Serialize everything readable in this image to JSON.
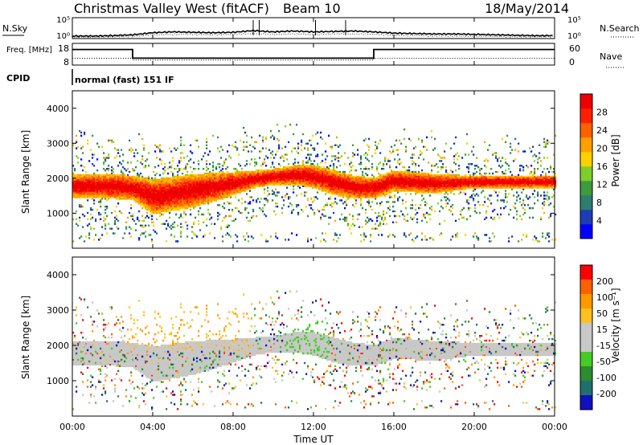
{
  "header": {
    "station": "Christmas Valley West (fitACF)",
    "beam": "Beam 10",
    "date": "18/May/2014"
  },
  "colors": {
    "power_scale": [
      "#0000ff",
      "#1e3cb4",
      "#2e7d6e",
      "#3d9a3d",
      "#7fcf2a",
      "#ffd000",
      "#ffa000",
      "#ff6000",
      "#ff2000",
      "#ee0000"
    ],
    "velocity_scale": [
      "#ff0000",
      "#ff6000",
      "#ff9900",
      "#ffc020",
      "#c8c8c8",
      "#c8c8c8",
      "#44cc22",
      "#2e8b2e",
      "#1f6f6f",
      "#1010c0"
    ],
    "ground_scatter": "#c8c8c8"
  },
  "chart_data": [
    {
      "type": "line",
      "panel": "noise",
      "ylabel_left": "N.Sky",
      "ylabel_right": "N.Search",
      "left_ticks": [
        "10^5",
        "10^0"
      ],
      "right_ticks": [
        "10^5",
        "10^0"
      ],
      "x_hours": [
        0,
        1,
        2,
        3,
        4,
        5,
        6,
        7,
        8,
        9,
        10,
        11,
        12,
        13,
        14,
        15,
        16,
        17,
        18,
        19,
        20,
        21,
        22,
        23,
        24
      ],
      "series": [
        {
          "style": "solid",
          "log10_values": [
            0.6,
            0.6,
            0.7,
            0.9,
            1.4,
            1.6,
            1.5,
            1.4,
            1.5,
            1.9,
            1.6,
            1.8,
            1.6,
            1.7,
            1.8,
            1.6,
            1.3,
            1.2,
            1.1,
            1.1,
            1.0,
            0.9,
            0.8,
            0.7,
            0.7
          ]
        },
        {
          "style": "dotted",
          "log10_values": [
            0.3,
            0.3,
            0.4,
            0.5,
            0.9,
            1.0,
            1.0,
            0.9,
            1.0,
            1.2,
            1.0,
            1.1,
            1.0,
            1.1,
            1.1,
            1.0,
            0.8,
            0.7,
            0.6,
            0.6,
            0.5,
            0.5,
            0.4,
            0.4,
            0.4
          ]
        }
      ]
    },
    {
      "type": "line",
      "panel": "frequency",
      "ylabel_left": "Freq. [MHz]",
      "ylabel_right": "Nave",
      "left_ticks": [
        "18",
        "8"
      ],
      "right_ticks": [
        "60",
        "0"
      ],
      "ylim_left": [
        8,
        18
      ],
      "ylim_right": [
        0,
        60
      ],
      "freq_mhz": [
        {
          "x_hours": 0,
          "value": 15.2
        },
        {
          "x_hours": 3,
          "value": 15.2
        },
        {
          "x_hours": 3,
          "value": 11.2
        },
        {
          "x_hours": 15,
          "value": 11.2
        },
        {
          "x_hours": 15,
          "value": 15.2
        },
        {
          "x_hours": 24,
          "value": 15.2
        }
      ],
      "nave": [
        {
          "x_hours": 0,
          "value": 19
        },
        {
          "x_hours": 3,
          "value": 19
        },
        {
          "x_hours": 3,
          "value": 14
        },
        {
          "x_hours": 15,
          "value": 14
        },
        {
          "x_hours": 15,
          "value": 19
        },
        {
          "x_hours": 24,
          "value": 19
        }
      ]
    },
    {
      "type": "heatmap",
      "panel": "power",
      "ylabel": "Slant Range [km]",
      "ylim": [
        0,
        4500
      ],
      "yticks": [
        1000,
        2000,
        3000,
        4000
      ],
      "colorbar_label": "Power [dB]",
      "colorbar_ticks": [
        4,
        8,
        12,
        16,
        20,
        24,
        28
      ],
      "colorbar_range": [
        0,
        32
      ],
      "echo_bands_hours": [
        0,
        2,
        3,
        4,
        6,
        8,
        9,
        10,
        11,
        12,
        13,
        14,
        15,
        16,
        18,
        20,
        22,
        24
      ],
      "echo_bands_km": [
        [
          1400,
          2100
        ],
        [
          1400,
          2100
        ],
        [
          1350,
          2050
        ],
        [
          950,
          1950
        ],
        [
          1150,
          2100
        ],
        [
          1500,
          2150
        ],
        [
          1700,
          2200
        ],
        [
          1800,
          2250
        ],
        [
          1800,
          2350
        ],
        [
          1700,
          2350
        ],
        [
          1500,
          2200
        ],
        [
          1400,
          2050
        ],
        [
          1400,
          2000
        ],
        [
          1600,
          2200
        ],
        [
          1550,
          2100
        ],
        [
          1700,
          2050
        ],
        [
          1700,
          2050
        ],
        [
          1700,
          2050
        ]
      ]
    },
    {
      "type": "heatmap",
      "panel": "velocity",
      "ylabel": "Slant Range [km]",
      "ylim": [
        0,
        4500
      ],
      "yticks": [
        1000,
        2000,
        3000,
        4000
      ],
      "colorbar_label": "Velocity [m s^-1]",
      "colorbar_ticks": [
        200,
        100,
        50,
        15,
        -15,
        -50,
        -100,
        -200
      ],
      "xlabel": "Time UT",
      "xticks": [
        "00:00",
        "04:00",
        "08:00",
        "12:00",
        "16:00",
        "20:00",
        "00:00"
      ]
    }
  ],
  "labels": {
    "cpid": "CPID",
    "mode": "normal (fast) 151 IF"
  }
}
